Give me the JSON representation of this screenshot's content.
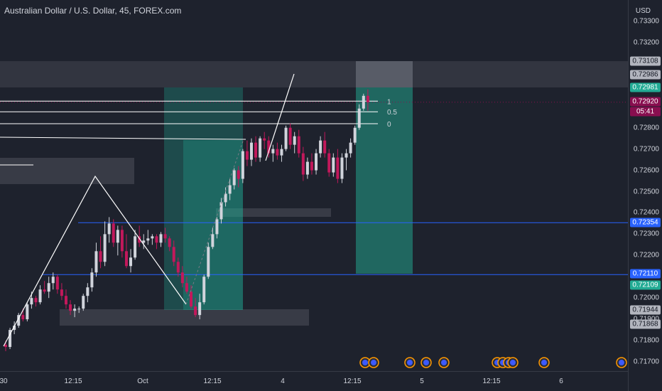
{
  "header": {
    "title": "Australian Dollar / U.S. Dollar, 45, FOREX.com"
  },
  "price_axis": {
    "unit": "USD",
    "ticks": [
      "0.73300",
      "0.73200",
      "0.72800",
      "0.72700",
      "0.72600",
      "0.72500",
      "0.72400",
      "0.72300",
      "0.72200",
      "0.72000",
      "0.71900",
      "0.71800",
      "0.71700"
    ],
    "labels": [
      {
        "text": "0.73108",
        "color": "#b2b5be",
        "text_color": "#131722"
      },
      {
        "text": "0.72986",
        "color": "#b2b5be",
        "text_color": "#131722"
      },
      {
        "text": "0.72981",
        "color": "#22ab94",
        "text_color": "#ffffff"
      },
      {
        "text": "0.72920",
        "color": "#880e4f",
        "text_color": "#ffffff"
      },
      {
        "text": "05:41",
        "color": "#880e4f",
        "text_color": "#ffffff"
      },
      {
        "text": "0.72354",
        "color": "#2962ff",
        "text_color": "#ffffff"
      },
      {
        "text": "0.72110",
        "color": "#2962ff",
        "text_color": "#ffffff"
      },
      {
        "text": "0.72109",
        "color": "#22ab94",
        "text_color": "#ffffff"
      },
      {
        "text": "0.71944",
        "color": "#b2b5be",
        "text_color": "#131722"
      },
      {
        "text": "0.71868",
        "color": "#b2b5be",
        "text_color": "#131722"
      }
    ]
  },
  "time_axis": {
    "ticks": [
      "30",
      "12:15",
      "Oct",
      "12:15",
      "4",
      "12:15",
      "5",
      "12:15",
      "6"
    ]
  },
  "fib_levels": [
    "1",
    "0.5",
    "0"
  ],
  "colors": {
    "up": "#d1d4dc",
    "down": "#c2185b",
    "hline": "#2962ff",
    "zone": "#434651",
    "box": "#22ab94",
    "fib": "#ffffff"
  },
  "chart_data": {
    "type": "candlestick",
    "title": "Australian Dollar / U.S. Dollar, 45, FOREX.com",
    "ylabel": "USD",
    "ylim": [
      0.7166,
      0.7335
    ],
    "last_price": 0.7292,
    "countdown": "05:41",
    "horizontal_lines": [
      0.72354,
      0.7211
    ],
    "fib_retracement": {
      "levels": [
        1,
        0.5,
        0
      ],
      "prices": [
        0.72925,
        0.72875,
        0.72819
      ]
    },
    "ohlc": [
      [
        0.7178,
        0.718,
        0.7175,
        0.7177
      ],
      [
        0.7177,
        0.7186,
        0.7176,
        0.7185
      ],
      [
        0.7185,
        0.7189,
        0.7183,
        0.7187
      ],
      [
        0.7187,
        0.7193,
        0.7186,
        0.7192
      ],
      [
        0.7192,
        0.7195,
        0.7189,
        0.719
      ],
      [
        0.719,
        0.7198,
        0.7189,
        0.7197
      ],
      [
        0.7197,
        0.7203,
        0.7195,
        0.72
      ],
      [
        0.72,
        0.7201,
        0.7196,
        0.7198
      ],
      [
        0.7198,
        0.7206,
        0.7197,
        0.7204
      ],
      [
        0.7204,
        0.7208,
        0.7202,
        0.7203
      ],
      [
        0.7203,
        0.721,
        0.72,
        0.7207
      ],
      [
        0.7207,
        0.7212,
        0.7204,
        0.721
      ],
      [
        0.721,
        0.7211,
        0.7202,
        0.7204
      ],
      [
        0.7204,
        0.7207,
        0.7199,
        0.7201
      ],
      [
        0.7201,
        0.7204,
        0.7195,
        0.7197
      ],
      [
        0.7197,
        0.7199,
        0.7192,
        0.7194
      ],
      [
        0.7194,
        0.7197,
        0.7191,
        0.7195
      ],
      [
        0.7195,
        0.7196,
        0.7193,
        0.7195
      ],
      [
        0.7195,
        0.7202,
        0.7194,
        0.7201
      ],
      [
        0.7201,
        0.7207,
        0.7198,
        0.7205
      ],
      [
        0.7205,
        0.7214,
        0.7203,
        0.7212
      ],
      [
        0.7212,
        0.7226,
        0.721,
        0.7222
      ],
      [
        0.7222,
        0.7229,
        0.7214,
        0.7217
      ],
      [
        0.7217,
        0.7236,
        0.7215,
        0.723
      ],
      [
        0.723,
        0.7238,
        0.7226,
        0.7235
      ],
      [
        0.7235,
        0.7237,
        0.7224,
        0.7226
      ],
      [
        0.7226,
        0.7234,
        0.722,
        0.7232
      ],
      [
        0.7232,
        0.7234,
        0.7219,
        0.7222
      ],
      [
        0.7222,
        0.723,
        0.7214,
        0.7215
      ],
      [
        0.7215,
        0.7223,
        0.7212,
        0.7219
      ],
      [
        0.7219,
        0.7232,
        0.7218,
        0.7229
      ],
      [
        0.7229,
        0.7234,
        0.7224,
        0.7226
      ],
      [
        0.7226,
        0.723,
        0.7223,
        0.7227
      ],
      [
        0.7227,
        0.7232,
        0.7225,
        0.7228
      ],
      [
        0.7228,
        0.723,
        0.7225,
        0.7229
      ],
      [
        0.7229,
        0.723,
        0.7223,
        0.7226
      ],
      [
        0.7226,
        0.7231,
        0.7224,
        0.723
      ],
      [
        0.723,
        0.7233,
        0.7226,
        0.7228
      ],
      [
        0.7228,
        0.7229,
        0.7222,
        0.7224
      ],
      [
        0.7224,
        0.7227,
        0.7215,
        0.7217
      ],
      [
        0.7217,
        0.7219,
        0.721,
        0.7212
      ],
      [
        0.7212,
        0.7215,
        0.7205,
        0.7207
      ],
      [
        0.7207,
        0.721,
        0.7202,
        0.7203
      ],
      [
        0.7203,
        0.7206,
        0.7195,
        0.7196
      ],
      [
        0.7196,
        0.72,
        0.7191,
        0.7192
      ],
      [
        0.7192,
        0.7202,
        0.719,
        0.7198
      ],
      [
        0.7198,
        0.7211,
        0.7197,
        0.721
      ],
      [
        0.721,
        0.7226,
        0.7209,
        0.7224
      ],
      [
        0.7224,
        0.7233,
        0.7223,
        0.723
      ],
      [
        0.723,
        0.7238,
        0.7228,
        0.7237
      ],
      [
        0.7237,
        0.7247,
        0.7235,
        0.7245
      ],
      [
        0.7245,
        0.7252,
        0.7243,
        0.7249
      ],
      [
        0.7249,
        0.7256,
        0.7246,
        0.7253
      ],
      [
        0.7253,
        0.7261,
        0.7251,
        0.726
      ],
      [
        0.726,
        0.7262,
        0.7252,
        0.7256
      ],
      [
        0.7256,
        0.727,
        0.7254,
        0.7269
      ],
      [
        0.7269,
        0.7274,
        0.7262,
        0.7265
      ],
      [
        0.7265,
        0.7275,
        0.7262,
        0.7273
      ],
      [
        0.7273,
        0.7276,
        0.7264,
        0.7266
      ],
      [
        0.7266,
        0.7276,
        0.7264,
        0.7275
      ],
      [
        0.7275,
        0.7278,
        0.727,
        0.7274
      ],
      [
        0.7274,
        0.7276,
        0.7266,
        0.7268
      ],
      [
        0.7268,
        0.7272,
        0.7264,
        0.727
      ],
      [
        0.727,
        0.7273,
        0.7265,
        0.7267
      ],
      [
        0.7267,
        0.7272,
        0.7264,
        0.727
      ],
      [
        0.727,
        0.7281,
        0.7269,
        0.728
      ],
      [
        0.728,
        0.7282,
        0.727,
        0.7272
      ],
      [
        0.7272,
        0.7278,
        0.7268,
        0.7276
      ],
      [
        0.7276,
        0.7279,
        0.7266,
        0.7268
      ],
      [
        0.7268,
        0.7271,
        0.7255,
        0.7258
      ],
      [
        0.7258,
        0.7266,
        0.7256,
        0.7264
      ],
      [
        0.7264,
        0.7268,
        0.7258,
        0.726
      ],
      [
        0.726,
        0.727,
        0.7258,
        0.7268
      ],
      [
        0.7268,
        0.7276,
        0.7266,
        0.7274
      ],
      [
        0.7274,
        0.7278,
        0.7266,
        0.7268
      ],
      [
        0.7268,
        0.727,
        0.7257,
        0.7259
      ],
      [
        0.7259,
        0.7268,
        0.7257,
        0.7266
      ],
      [
        0.7266,
        0.727,
        0.7254,
        0.7256
      ],
      [
        0.7256,
        0.7268,
        0.7254,
        0.7266
      ],
      [
        0.7266,
        0.727,
        0.726,
        0.7268
      ],
      [
        0.7268,
        0.7275,
        0.7266,
        0.7273
      ],
      [
        0.7273,
        0.7281,
        0.7272,
        0.728
      ],
      [
        0.728,
        0.7291,
        0.7279,
        0.7289
      ],
      [
        0.7289,
        0.7296,
        0.7288,
        0.7295
      ],
      [
        0.7295,
        0.7298,
        0.7288,
        0.7292
      ]
    ]
  }
}
